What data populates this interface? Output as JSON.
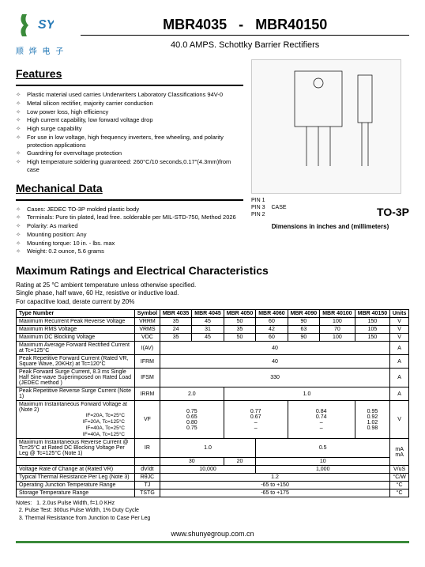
{
  "logo": {
    "chinese": "顺 烨 电 子",
    "sy": "SY"
  },
  "title": {
    "part_a": "MBR4035",
    "sep": "-",
    "part_b": "MBR40150"
  },
  "subtitle": "40.0 AMPS. Schottky Barrier Rectifiers",
  "features_title": "Features",
  "features": [
    "Plastic material used carries Underwriters Laboratory Classifications 94V-0",
    "Metal silicon rectifier, majority carrier conduction",
    "Low power loss, high efficiency",
    "High current capability, low forward voltage drop",
    "High surge capability",
    "For use in low voltage, high frequency inverters, free wheeling, and polarity protection applications",
    "Guardring for overvoltage protection",
    "High temperature soldering guaranteed: 260°C/10 seconds,0.17\"(4.3mm)from case"
  ],
  "mech_title": "Mechanical Data",
  "mech": [
    "Cases: JEDEC TO-3P molded plastic body",
    "Terminals: Pure tin plated, lead free. solderable per MIL-STD-750, Method 2026",
    "Polarity: As marked",
    "Mounting position: Any",
    "Mounting torque: 10 in. - lbs. max",
    "Weight: 0.2 ounce, 5.6 grams"
  ],
  "pkg": {
    "type": "TO-3P",
    "caption": "Dimensions in inches and (millimeters)",
    "pins": "PIN 1\nPIN 3",
    "pin_labels": "CASE\nPIN 2"
  },
  "ratings_title": "Maximum Ratings and Electrical Characteristics",
  "ratings_note": "Rating at 25 °C ambient temperature unless otherwise specified.\nSingle phase, half wave, 60 Hz, resistive or inductive load.\nFor capacitive load, derate current by 20%",
  "table": {
    "header": [
      "Type Number",
      "Symbol",
      "MBR 4035",
      "MBR 4045",
      "MBR 4050",
      "MBR 4060",
      "MBR 4090",
      "MBR 40100",
      "MBR 40150",
      "Units"
    ],
    "rows": [
      {
        "label": "Maximum Recurrent Peak Reverse Voltage",
        "sym": "VRRM",
        "vals": [
          "35",
          "45",
          "50",
          "60",
          "90",
          "100",
          "150"
        ],
        "unit": "V"
      },
      {
        "label": "Maximum RMS Voltage",
        "sym": "VRMS",
        "vals": [
          "24",
          "31",
          "35",
          "42",
          "63",
          "70",
          "105"
        ],
        "unit": "V"
      },
      {
        "label": "Maximum DC Blocking Voltage",
        "sym": "VDC",
        "vals": [
          "35",
          "45",
          "50",
          "60",
          "90",
          "100",
          "150"
        ],
        "unit": "V"
      },
      {
        "label": "Maximum Average Forward Rectified Current at Tc=125°C",
        "sym": "I(AV)",
        "span": "40",
        "unit": "A"
      },
      {
        "label": "Peak Repetitive Forward Current (Rated VR, Square Wave, 20KHz) at Tc=120°C",
        "sym": "IFRM",
        "span": "40",
        "unit": "A"
      },
      {
        "label": "Peak Forward Surge Current, 8.3 ms Single Half Sine-wave Superimposed on Rated Load (JEDEC method )",
        "sym": "IFSM",
        "span": "330",
        "unit": "A"
      },
      {
        "label": "Peak Repetitive Reverse Surge Current (Note 1)",
        "sym": "IRRM",
        "group": [
          [
            "2.0",
            2
          ],
          [
            "1.0",
            5
          ]
        ],
        "unit": "A"
      },
      {
        "label": "Maximum Instantaneous Forward Voltage at (Note 2)",
        "sym": "VF",
        "vf": true,
        "conds": [
          "IF=20A, Tc=25°C",
          "IF=20A, Tc=125°C",
          "IF=40A, Tc=25°C",
          "IF=40A, Tc=125°C"
        ],
        "cols": [
          [
            "0.75",
            "0.65",
            "0.80",
            "0.75"
          ],
          [
            "0.77",
            "0.67",
            "–",
            "–"
          ],
          [
            "0.84",
            "0.74",
            "–",
            "–"
          ],
          [
            "0.95",
            "0.92",
            "1.02",
            "0.98"
          ]
        ],
        "unit": "V"
      },
      {
        "label": "Maximum Instantaneous Reverse Current @ Tc=25°C at Rated DC Blocking Voltage Per Leg @ Tc=125°C (Note 1)",
        "sym": "IR",
        "ir": true,
        "r1": [
          [
            "1.0",
            3
          ],
          [
            "0.5",
            4
          ]
        ],
        "r2": [
          [
            "30",
            2
          ],
          [
            "20",
            1
          ],
          [
            "10",
            4
          ]
        ],
        "unit": "mA\nmA"
      },
      {
        "label": "Voltage Rate of Change at (Rated VR)",
        "sym": "dV/dt",
        "group": [
          [
            "10,000",
            3
          ],
          [
            "1,000",
            4
          ]
        ],
        "unit": "V/uS"
      },
      {
        "label": "Typical Thermal Resistance Per Leg (Note 3)",
        "sym": "RθJC",
        "span": "1.2",
        "unit": "°C/W"
      },
      {
        "label": "Operating Junction Temperature Range",
        "sym": "TJ",
        "span": "-65 to +150",
        "unit": "°C"
      },
      {
        "label": "Storage Temperature Range",
        "sym": "TSTG",
        "span": "-65 to +175",
        "unit": "°C"
      }
    ]
  },
  "notes_label": "Notes:",
  "notes": [
    "1. 2.0us Pulse Width, f=1.0 KHz",
    "2. Pulse Test: 300us Pulse Width, 1% Duty Cycle",
    "3. Thermal Resistance from Junction to Case Per Leg"
  ],
  "footer": "www.shunyegroup.com.cn"
}
